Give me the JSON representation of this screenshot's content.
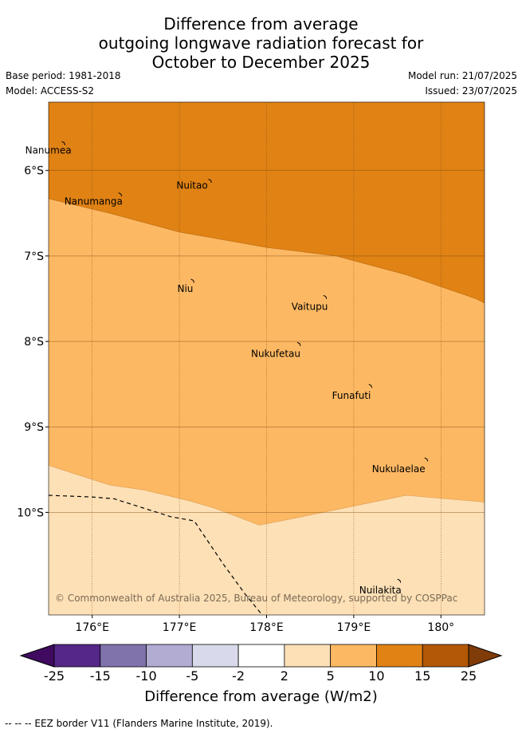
{
  "header": {
    "title_lines": [
      "Difference from average",
      "outgoing longwave radiation forecast for",
      "October to December 2025"
    ],
    "base_period": "Base period: 1981-2018",
    "model": "Model: ACCESS-S2",
    "model_run": "Model run: 21/07/2025",
    "issued": "Issued: 23/07/2025"
  },
  "map": {
    "extent": {
      "lon": [
        175.5,
        180.5
      ],
      "lat": [
        -11.2,
        -5.2
      ]
    },
    "lon_ticks": [
      {
        "value": 176,
        "label": "176°E"
      },
      {
        "value": 177,
        "label": "177°E"
      },
      {
        "value": 178,
        "label": "178°E"
      },
      {
        "value": 179,
        "label": "179°E"
      },
      {
        "value": 180,
        "label": "180°"
      }
    ],
    "lat_ticks": [
      {
        "value": -6,
        "label": "6°S"
      },
      {
        "value": -7,
        "label": "7°S"
      },
      {
        "value": -8,
        "label": "8°S"
      },
      {
        "value": -9,
        "label": "9°S"
      },
      {
        "value": -10,
        "label": "10°S"
      }
    ],
    "places": [
      {
        "name": "Nanumea",
        "lon": 175.67,
        "lat": -5.68
      },
      {
        "name": "Nuitao",
        "lon": 177.35,
        "lat": -6.12
      },
      {
        "name": "Nanumanga",
        "lon": 176.32,
        "lat": -6.28
      },
      {
        "name": "Niu",
        "lon": 177.15,
        "lat": -7.29
      },
      {
        "name": "Vaitupu",
        "lon": 178.67,
        "lat": -7.48
      },
      {
        "name": "Nukufetau",
        "lon": 178.37,
        "lat": -8.03
      },
      {
        "name": "Funafuti",
        "lon": 179.19,
        "lat": -8.52
      },
      {
        "name": "Nukulaelae",
        "lon": 179.83,
        "lat": -9.38
      },
      {
        "name": "Nuilakita",
        "lon": 179.52,
        "lat": -10.8
      }
    ],
    "colors": {
      "band_15": "#e08214",
      "band_10": "#fdb863",
      "band_5": "#fee0b6",
      "grid": "#7a4a10"
    },
    "copyright": "© Commonwealth of Australia 2025, Bureau of Meteorology, supported by COSPPac"
  },
  "colorbar": {
    "title": "Difference from average (W/m2)",
    "labels": [
      "-25",
      "-15",
      "-10",
      "-5",
      "-2",
      "2",
      "5",
      "10",
      "15",
      "25"
    ],
    "colors": [
      "#3f0a5f",
      "#542788",
      "#8073ac",
      "#b2abd2",
      "#d8daeb",
      "#ffffff",
      "#fee0b6",
      "#fdb863",
      "#e08214",
      "#b35806",
      "#7f3b08"
    ]
  },
  "footer": "--  --  -- EEZ border V11 (Flanders Marine Institute, 2019)."
}
